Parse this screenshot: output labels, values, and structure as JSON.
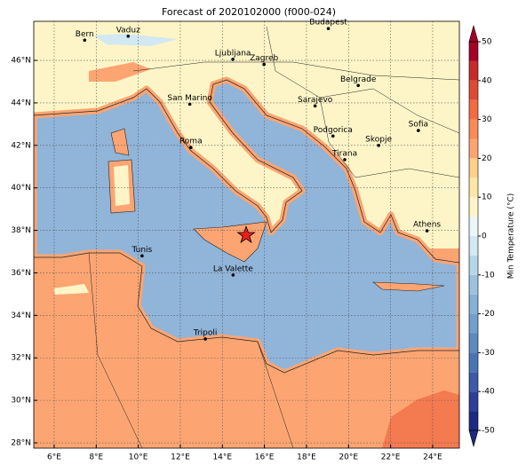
{
  "map": {
    "title": "Forecast of 2020102000 (f000-024)",
    "lonlim": [
      5.03,
      25.27
    ],
    "latlim": [
      27.75,
      47.84
    ],
    "xticks": [
      {
        "value": 6,
        "label": "6°E"
      },
      {
        "value": 8,
        "label": "8°E"
      },
      {
        "value": 10,
        "label": "10°E"
      },
      {
        "value": 12,
        "label": "12°E"
      },
      {
        "value": 14,
        "label": "14°E"
      },
      {
        "value": 16,
        "label": "16°E"
      },
      {
        "value": 18,
        "label": "18°E"
      },
      {
        "value": 20,
        "label": "20°E"
      },
      {
        "value": 22,
        "label": "22°E"
      },
      {
        "value": 24,
        "label": "24°E"
      }
    ],
    "yticks": [
      {
        "value": 28,
        "label": "28°N"
      },
      {
        "value": 30,
        "label": "30°N"
      },
      {
        "value": 32,
        "label": "32°N"
      },
      {
        "value": 34,
        "label": "34°N"
      },
      {
        "value": 36,
        "label": "36°N"
      },
      {
        "value": 38,
        "label": "38°N"
      },
      {
        "value": 40,
        "label": "40°N"
      },
      {
        "value": 42,
        "label": "42°N"
      },
      {
        "value": 44,
        "label": "44°N"
      },
      {
        "value": 46,
        "label": "46°N"
      }
    ],
    "grid": true,
    "cities": [
      {
        "name": "Bern",
        "lon": 7.45,
        "lat": 46.95
      },
      {
        "name": "Vaduz",
        "lon": 9.52,
        "lat": 47.14
      },
      {
        "name": "Budapest",
        "lon": 19.04,
        "lat": 47.5
      },
      {
        "name": "Ljubljana",
        "lon": 14.5,
        "lat": 46.05
      },
      {
        "name": "Zagreb",
        "lon": 15.98,
        "lat": 45.81
      },
      {
        "name": "Belgrade",
        "lon": 20.46,
        "lat": 44.82
      },
      {
        "name": "Sarajevo",
        "lon": 18.41,
        "lat": 43.86
      },
      {
        "name": "San Marino",
        "lon": 12.45,
        "lat": 43.94
      },
      {
        "name": "Sofia",
        "lon": 23.32,
        "lat": 42.7
      },
      {
        "name": "Podgorica",
        "lon": 19.26,
        "lat": 42.44
      },
      {
        "name": "Skopje",
        "lon": 21.43,
        "lat": 42.0
      },
      {
        "name": "Roma",
        "lon": 12.5,
        "lat": 41.9
      },
      {
        "name": "Tirana",
        "lon": 19.82,
        "lat": 41.33
      },
      {
        "name": "Athens",
        "lon": 23.73,
        "lat": 37.98
      },
      {
        "name": "Tunis",
        "lon": 10.18,
        "lat": 36.8
      },
      {
        "name": "La Valette",
        "lon": 14.51,
        "lat": 35.9
      },
      {
        "name": "Tripoli",
        "lon": 13.19,
        "lat": 32.89
      }
    ],
    "marker": {
      "lon": 15.13,
      "lat": 37.77,
      "color": "#e8201c"
    },
    "colorbar": {
      "label": "Min Temperature (°C)",
      "lim": [
        -50,
        50
      ],
      "ticks": [
        -50,
        -40,
        -30,
        -20,
        -10,
        0,
        10,
        20,
        30,
        40,
        50
      ],
      "levels": [
        -50,
        -45,
        -40,
        -35,
        -30,
        -25,
        -20,
        -15,
        -10,
        -5,
        0,
        5,
        10,
        15,
        20,
        25,
        30,
        35,
        40,
        45,
        50
      ],
      "colors": [
        "#1c2a80",
        "#2f3f99",
        "#3c5aa8",
        "#4a74b4",
        "#5e8abf",
        "#729fcb",
        "#86b0d6",
        "#9cc2e0",
        "#b6d6ea",
        "#d2e8f2",
        "#eaf6f8",
        "#fdf5c7",
        "#fde6a6",
        "#fdd08a",
        "#fca572",
        "#f98b5a",
        "#f26b43",
        "#de4a33",
        "#c62a2a",
        "#a50026"
      ]
    }
  }
}
